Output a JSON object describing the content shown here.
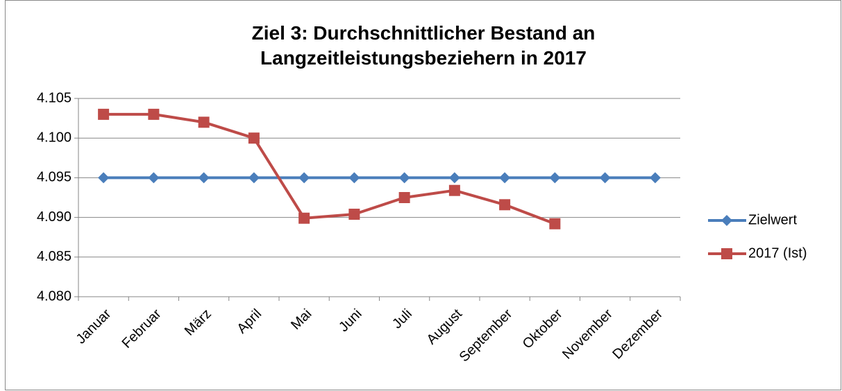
{
  "chart_data": {
    "type": "line",
    "title": "Ziel 3: Durchschnittlicher Bestand an Langzeitleistungsbeziehern in 2017",
    "categories": [
      "Januar",
      "Februar",
      "März",
      "April",
      "Mai",
      "Juni",
      "Juli",
      "August",
      "September",
      "Oktober",
      "November",
      "Dezember"
    ],
    "series": [
      {
        "name": "Zielwert",
        "color": "#4a7ebb",
        "marker": "diamond",
        "values": [
          4095,
          4095,
          4095,
          4095,
          4095,
          4095,
          4095,
          4095,
          4095,
          4095,
          4095,
          4095
        ]
      },
      {
        "name": "2017 (Ist)",
        "color": "#be4b48",
        "marker": "square",
        "values": [
          4103,
          4103,
          4102,
          4100,
          4089.9,
          4090.4,
          4092.5,
          4093.4,
          4091.6,
          4089.2,
          null,
          null
        ]
      }
    ],
    "ylim": [
      4080,
      4105
    ],
    "yticks": [
      {
        "value": 4080,
        "label": "4.080"
      },
      {
        "value": 4085,
        "label": "4.085"
      },
      {
        "value": 4090,
        "label": "4.090"
      },
      {
        "value": 4095,
        "label": "4.095"
      },
      {
        "value": 4100,
        "label": "4.100"
      },
      {
        "value": 4105,
        "label": "4.105"
      }
    ],
    "grid": true,
    "legend": "right"
  }
}
